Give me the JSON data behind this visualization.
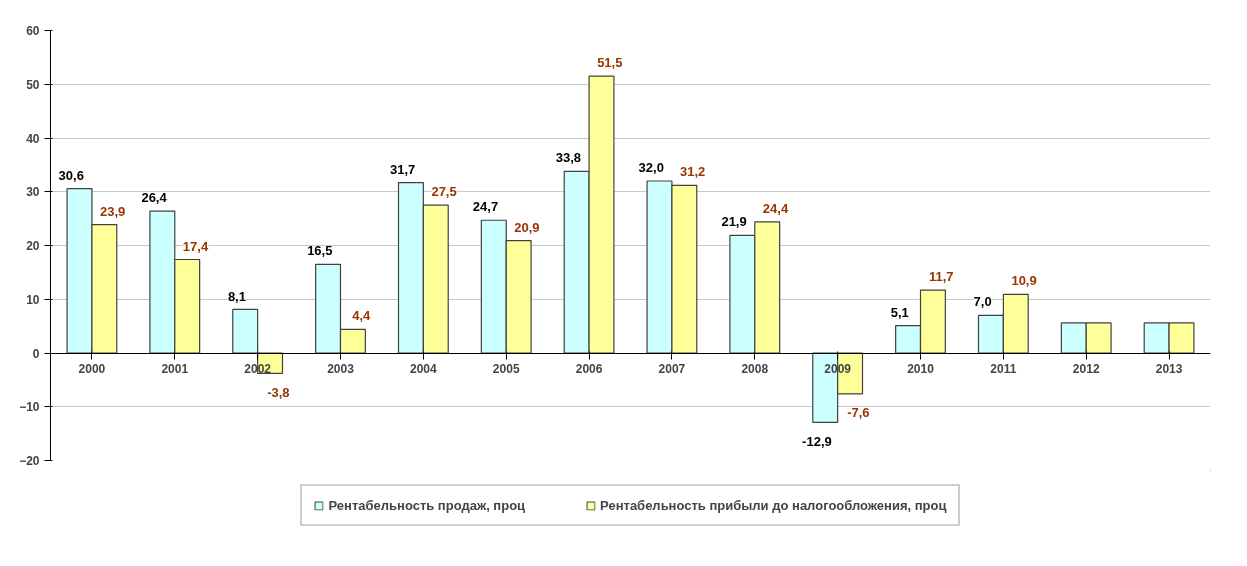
{
  "chart_data": {
    "type": "bar",
    "categories": [
      "2000",
      "2001",
      "2002",
      "2003",
      "2004",
      "2005",
      "2006",
      "2007",
      "2008",
      "2009",
      "2010",
      "2011",
      "2012",
      "2013"
    ],
    "series": [
      {
        "name": "Рентабельность продаж, проц",
        "color": "#ccffff",
        "values": [
          30.6,
          26.4,
          8.1,
          16.5,
          31.7,
          24.7,
          33.8,
          32.0,
          21.9,
          -12.9,
          5.1,
          7.0,
          5.6,
          5.6
        ],
        "value_labels": [
          "30,6",
          "26,4",
          "8,1",
          "16,5",
          "31,7",
          "24,7",
          "33,8",
          "32,0",
          "21,9",
          "-12,9",
          "5,1",
          "7,0",
          null,
          null
        ]
      },
      {
        "name": "Рентабельность прибыли до налогообложения, проц",
        "color": "#ffff99",
        "values": [
          23.9,
          17.4,
          -3.8,
          4.4,
          27.5,
          20.9,
          51.5,
          31.2,
          24.4,
          -7.6,
          11.7,
          10.9,
          5.6,
          5.6
        ],
        "value_labels": [
          "23,9",
          "17,4",
          "-3,8",
          "4,4",
          "27,5",
          "20,9",
          "51,5",
          "31,2",
          "24,4",
          "-7,6",
          "11,7",
          "10,9",
          null,
          null
        ]
      }
    ],
    "ylim": [
      -20,
      60
    ],
    "yticks": [
      -20,
      -10,
      0,
      10,
      20,
      30,
      40,
      50,
      60
    ],
    "grid": "y",
    "legend": "bottom"
  }
}
